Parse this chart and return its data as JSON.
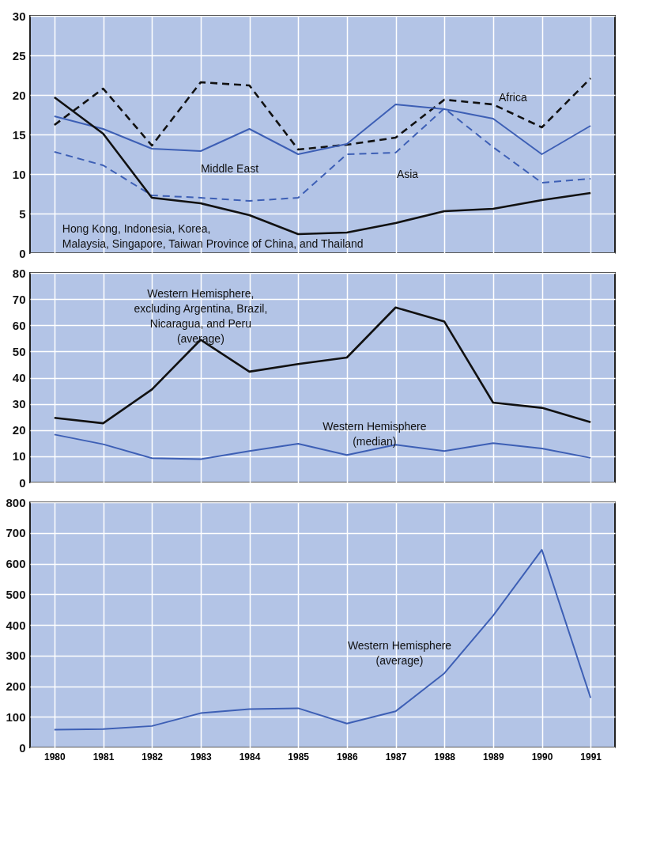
{
  "chart_data": [
    {
      "type": "line",
      "categories": [
        "1980",
        "1981",
        "1982",
        "1983",
        "1984",
        "1985",
        "1986",
        "1987",
        "1988",
        "1989",
        "1990",
        "1991"
      ],
      "ylim": [
        0,
        30
      ],
      "yticks": [
        0,
        5,
        10,
        15,
        20,
        25,
        30
      ],
      "grid": true,
      "legend": false,
      "tick_labels": "y",
      "series": [
        {
          "name": "Africa",
          "color": "#111111",
          "line_style": "dashed",
          "values": [
            16.2,
            20.8,
            13.6,
            21.6,
            21.2,
            13.1,
            13.7,
            14.6,
            19.4,
            18.8,
            15.9,
            22.1
          ]
        },
        {
          "name": "Middle East",
          "color": "#3d5fb5",
          "line_style": "solid",
          "values": [
            17.3,
            15.7,
            13.2,
            12.9,
            15.7,
            12.5,
            13.8,
            18.8,
            18.2,
            17.0,
            12.5,
            16.1
          ]
        },
        {
          "name": "Asia",
          "color": "#3d5fb5",
          "line_style": "dashed",
          "values": [
            12.8,
            11.1,
            7.3,
            7.0,
            6.6,
            7.0,
            12.5,
            12.7,
            18.3,
            13.4,
            8.9,
            9.4
          ]
        },
        {
          "name": "Hong Kong, Indonesia, Korea, Malaysia, Singapore, Taiwan Province of China, and Thailand",
          "color": "#111111",
          "line_style": "solid",
          "values": [
            19.7,
            15.1,
            7.0,
            6.3,
            4.8,
            2.4,
            2.6,
            3.8,
            5.3,
            5.6,
            6.7,
            7.6
          ]
        }
      ]
    },
    {
      "type": "line",
      "categories": [
        "1980",
        "1981",
        "1982",
        "1983",
        "1984",
        "1985",
        "1986",
        "1987",
        "1988",
        "1989",
        "1990",
        "1991"
      ],
      "ylim": [
        0,
        80
      ],
      "yticks": [
        0,
        10,
        20,
        30,
        40,
        50,
        60,
        70,
        80
      ],
      "grid": true,
      "legend": false,
      "tick_labels": "y",
      "series": [
        {
          "name": "Western Hemisphere, excluding Argentina, Brazil, Nicaragua, and Peru (average)",
          "color": "#111111",
          "line_style": "solid",
          "values": [
            24.7,
            22.6,
            35.5,
            54.5,
            42.3,
            45.2,
            47.7,
            66.8,
            61.4,
            30.5,
            28.5,
            23.0
          ]
        },
        {
          "name": "Western Hemisphere (median)",
          "color": "#3d5fb5",
          "line_style": "solid",
          "values": [
            18.3,
            14.6,
            9.3,
            8.9,
            12.0,
            14.8,
            10.5,
            14.4,
            12.0,
            15.0,
            13.0,
            9.4
          ]
        }
      ]
    },
    {
      "type": "line",
      "categories": [
        "1980",
        "1981",
        "1982",
        "1983",
        "1984",
        "1985",
        "1986",
        "1987",
        "1988",
        "1989",
        "1990",
        "1991"
      ],
      "ylim": [
        0,
        800
      ],
      "yticks": [
        0,
        100,
        200,
        300,
        400,
        500,
        600,
        700,
        800
      ],
      "grid": true,
      "legend": false,
      "series": [
        {
          "name": "Western Hemisphere (average)",
          "color": "#3d5fb5",
          "line_style": "solid",
          "values": [
            58,
            60,
            70,
            112,
            125,
            128,
            78,
            118,
            242,
            430,
            645,
            162
          ]
        }
      ]
    }
  ]
}
